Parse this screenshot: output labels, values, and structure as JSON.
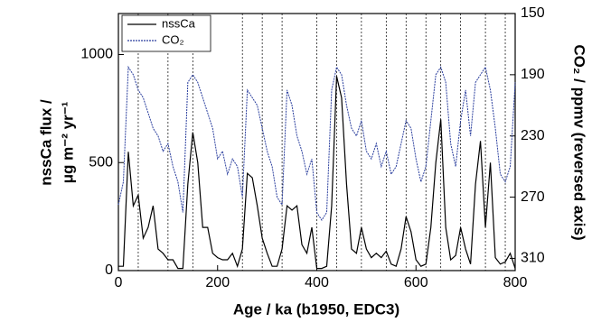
{
  "chart_data": {
    "type": "line",
    "xlabel": "Age / ka (b1950, EDC3)",
    "ylabel": [
      "nssCa flux /",
      "μg m⁻² yr⁻¹"
    ],
    "y2label": "CO₂ / ppmv (reversed axis)",
    "x": [
      0,
      10,
      20,
      30,
      40,
      50,
      60,
      70,
      80,
      90,
      100,
      110,
      120,
      130,
      140,
      150,
      160,
      170,
      180,
      190,
      200,
      210,
      220,
      230,
      240,
      250,
      260,
      270,
      280,
      290,
      300,
      310,
      320,
      330,
      340,
      350,
      360,
      370,
      380,
      390,
      400,
      410,
      420,
      430,
      440,
      450,
      460,
      470,
      480,
      490,
      500,
      510,
      520,
      530,
      540,
      550,
      560,
      570,
      580,
      590,
      600,
      610,
      620,
      630,
      640,
      650,
      660,
      670,
      680,
      690,
      700,
      710,
      720,
      730,
      740,
      750,
      760,
      770,
      780,
      790,
      800
    ],
    "series": [
      {
        "name": "nssCa",
        "color": "#000000",
        "values": [
          20,
          20,
          550,
          300,
          350,
          150,
          200,
          300,
          100,
          80,
          50,
          50,
          10,
          10,
          400,
          640,
          500,
          200,
          200,
          80,
          60,
          50,
          50,
          80,
          20,
          100,
          450,
          430,
          300,
          150,
          80,
          20,
          20,
          100,
          300,
          280,
          300,
          120,
          80,
          200,
          10,
          10,
          20,
          300,
          900,
          800,
          400,
          100,
          80,
          200,
          100,
          60,
          80,
          60,
          90,
          30,
          20,
          100,
          250,
          180,
          50,
          20,
          30,
          200,
          500,
          700,
          200,
          50,
          70,
          200,
          100,
          30,
          400,
          600,
          200,
          500,
          60,
          30,
          40,
          80,
          10
        ]
      },
      {
        "name": "CO₂",
        "color": "#2b3f9e",
        "axis": "y2",
        "values": [
          275,
          260,
          185,
          190,
          200,
          205,
          215,
          225,
          230,
          240,
          235,
          250,
          260,
          280,
          195,
          190,
          195,
          205,
          215,
          225,
          245,
          240,
          255,
          245,
          250,
          270,
          200,
          205,
          210,
          225,
          240,
          250,
          270,
          275,
          200,
          210,
          230,
          240,
          255,
          245,
          280,
          285,
          280,
          200,
          185,
          190,
          210,
          225,
          230,
          220,
          240,
          245,
          235,
          250,
          240,
          255,
          250,
          235,
          220,
          225,
          245,
          260,
          250,
          220,
          190,
          185,
          195,
          235,
          250,
          220,
          200,
          230,
          195,
          190,
          185,
          200,
          225,
          255,
          260,
          250,
          195
        ]
      }
    ],
    "xlim": [
      0,
      800
    ],
    "xticks": [
      0,
      200,
      400,
      600,
      800
    ],
    "ylim": [
      0,
      1190
    ],
    "yticks": [
      0,
      500,
      1000
    ],
    "y2lim": [
      318,
      150
    ],
    "y2ticks": [
      150,
      190,
      230,
      270,
      310
    ],
    "vlines": [
      40,
      100,
      150,
      250,
      290,
      330,
      400,
      440,
      490,
      540,
      580,
      620,
      650,
      690,
      740,
      780
    ],
    "legend": "upper-left"
  }
}
